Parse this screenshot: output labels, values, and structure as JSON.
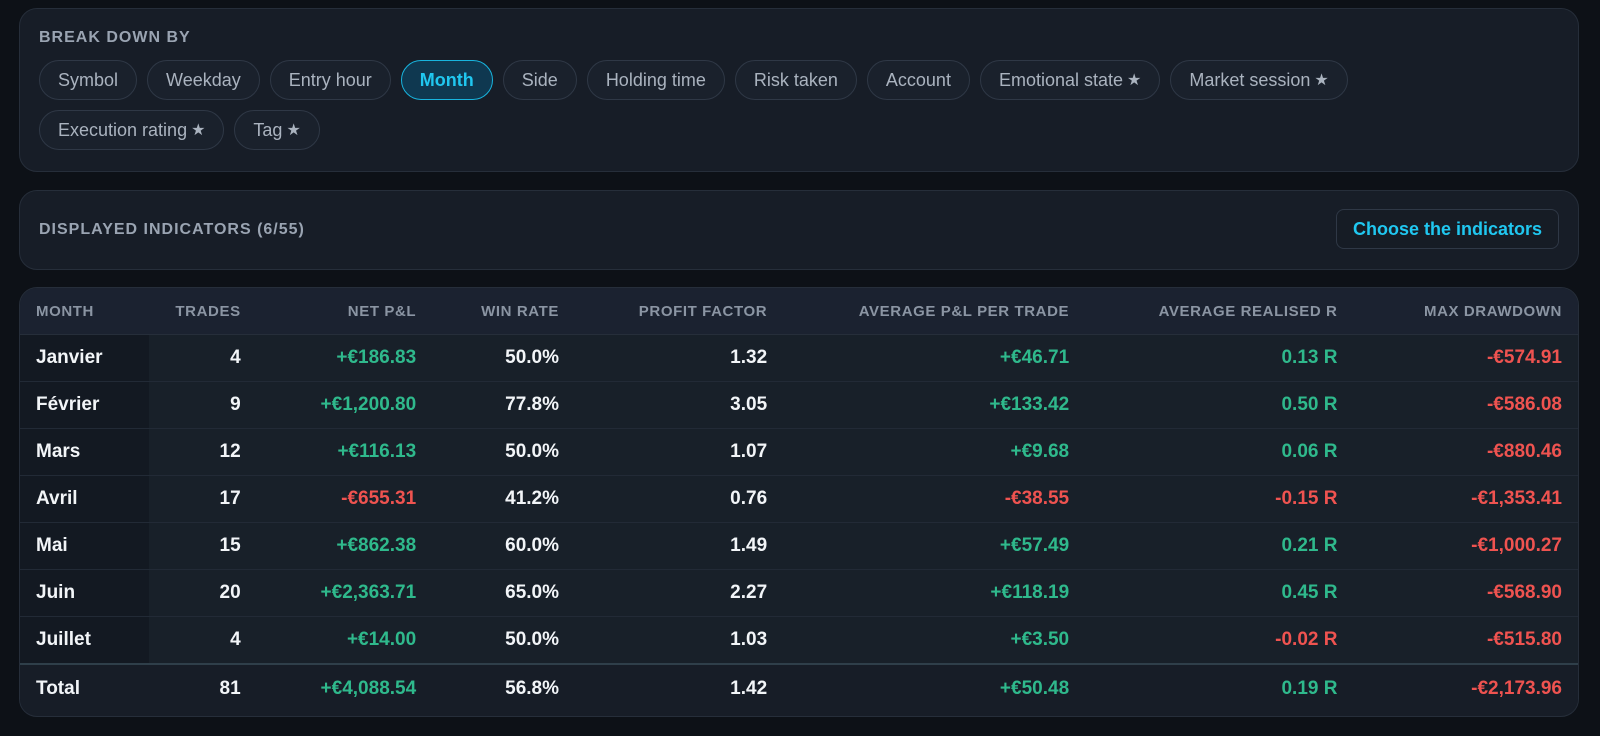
{
  "breakdown": {
    "title": "BREAK DOWN BY",
    "options": [
      {
        "label": "Symbol",
        "star": "",
        "active": false
      },
      {
        "label": "Weekday",
        "star": "",
        "active": false
      },
      {
        "label": "Entry hour",
        "star": "",
        "active": false
      },
      {
        "label": "Month",
        "star": "",
        "active": true
      },
      {
        "label": "Side",
        "star": "",
        "active": false
      },
      {
        "label": "Holding time",
        "star": "",
        "active": false
      },
      {
        "label": "Risk taken",
        "star": "",
        "active": false
      },
      {
        "label": "Account",
        "star": "",
        "active": false
      },
      {
        "label": "Emotional state",
        "star": "★",
        "active": false
      },
      {
        "label": "Market session",
        "star": "★",
        "active": false
      },
      {
        "label": "Execution rating",
        "star": "★",
        "active": false
      },
      {
        "label": "Tag",
        "star": "★",
        "active": false
      }
    ]
  },
  "indicators": {
    "title": "DISPLAYED INDICATORS (6/55)",
    "choose_label": "Choose the indicators"
  },
  "table": {
    "headers": [
      "MONTH",
      "TRADES",
      "NET P&L",
      "WIN RATE",
      "PROFIT FACTOR",
      "AVERAGE P&L PER TRADE",
      "AVERAGE REALISED R",
      "MAX DRAWDOWN"
    ],
    "rows": [
      {
        "month": "Janvier",
        "trades": "4",
        "net_pnl": "+€186.83",
        "win_rate": "50.0%",
        "profit_factor": "1.32",
        "avg_pnl": "+€46.71",
        "avg_r": "0.13 R",
        "max_dd": "-€574.91"
      },
      {
        "month": "Février",
        "trades": "9",
        "net_pnl": "+€1,200.80",
        "win_rate": "77.8%",
        "profit_factor": "3.05",
        "avg_pnl": "+€133.42",
        "avg_r": "0.50 R",
        "max_dd": "-€586.08"
      },
      {
        "month": "Mars",
        "trades": "12",
        "net_pnl": "+€116.13",
        "win_rate": "50.0%",
        "profit_factor": "1.07",
        "avg_pnl": "+€9.68",
        "avg_r": "0.06 R",
        "max_dd": "-€880.46"
      },
      {
        "month": "Avril",
        "trades": "17",
        "net_pnl": "-€655.31",
        "win_rate": "41.2%",
        "profit_factor": "0.76",
        "avg_pnl": "-€38.55",
        "avg_r": "-0.15 R",
        "max_dd": "-€1,353.41"
      },
      {
        "month": "Mai",
        "trades": "15",
        "net_pnl": "+€862.38",
        "win_rate": "60.0%",
        "profit_factor": "1.49",
        "avg_pnl": "+€57.49",
        "avg_r": "0.21 R",
        "max_dd": "-€1,000.27"
      },
      {
        "month": "Juin",
        "trades": "20",
        "net_pnl": "+€2,363.71",
        "win_rate": "65.0%",
        "profit_factor": "2.27",
        "avg_pnl": "+€118.19",
        "avg_r": "0.45 R",
        "max_dd": "-€568.90"
      },
      {
        "month": "Juillet",
        "trades": "4",
        "net_pnl": "+€14.00",
        "win_rate": "50.0%",
        "profit_factor": "1.03",
        "avg_pnl": "+€3.50",
        "avg_r": "-0.02 R",
        "max_dd": "-€515.80"
      }
    ],
    "total": {
      "month": "Total",
      "trades": "81",
      "net_pnl": "+€4,088.54",
      "win_rate": "56.8%",
      "profit_factor": "1.42",
      "avg_pnl": "+€50.48",
      "avg_r": "0.19 R",
      "max_dd": "-€2,173.96"
    }
  },
  "colors": {
    "accent": "#20c7f0",
    "positive": "#2fb98c",
    "negative": "#ef5350"
  }
}
